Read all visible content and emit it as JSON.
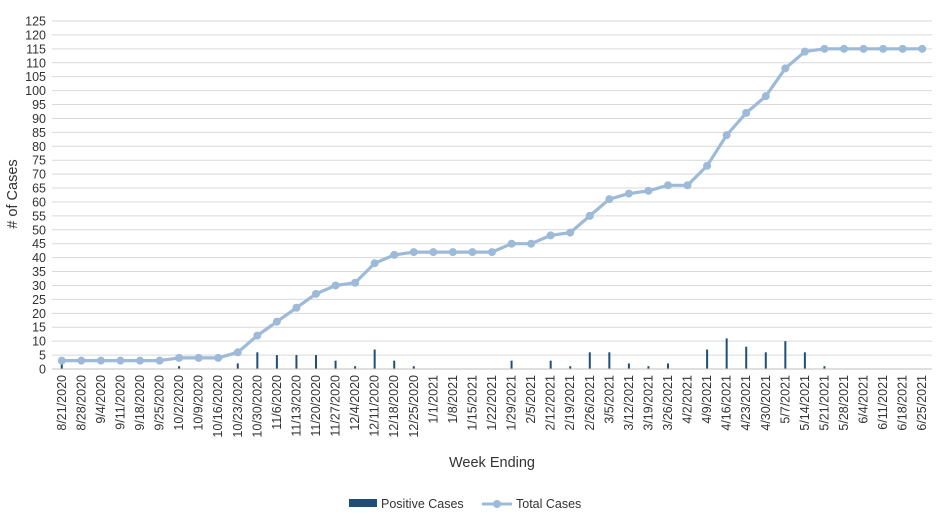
{
  "chart_data": {
    "type": "bar+line",
    "xlabel": "Week Ending",
    "ylabel": "# of Cases",
    "ylim": [
      0,
      125
    ],
    "ytick_step": 5,
    "grid": true,
    "legend_position": "bottom",
    "categories": [
      "8/21/2020",
      "8/28/2020",
      "9/4/2020",
      "9/11/2020",
      "9/18/2020",
      "9/25/2020",
      "10/2/2020",
      "10/9/2020",
      "10/16/2020",
      "10/23/2020",
      "10/30/2020",
      "11/6/2020",
      "11/13/2020",
      "11/20/2020",
      "11/27/2020",
      "12/4/2020",
      "12/11/2020",
      "12/18/2020",
      "12/25/2020",
      "1/1/2021",
      "1/8/2021",
      "1/15/2021",
      "1/22/2021",
      "1/29/2021",
      "2/5/2021",
      "2/12/2021",
      "2/19/2021",
      "2/26/2021",
      "3/5/2021",
      "3/12/2021",
      "3/19/2021",
      "3/26/2021",
      "4/2/2021",
      "4/9/2021",
      "4/16/2021",
      "4/23/2021",
      "4/30/2021",
      "5/7/2021",
      "5/14/2021",
      "5/21/2021",
      "5/28/2021",
      "6/4/2021",
      "6/11/2021",
      "6/18/2021",
      "6/25/2021"
    ],
    "series": [
      {
        "name": "Positive Cases",
        "kind": "bar",
        "color": "#1f4e79",
        "values": [
          3,
          0,
          0,
          0,
          0,
          0,
          1,
          0,
          0,
          2,
          6,
          5,
          5,
          5,
          3,
          1,
          7,
          3,
          1,
          0,
          0,
          0,
          0,
          3,
          0,
          3,
          1,
          6,
          6,
          2,
          1,
          2,
          0,
          7,
          11,
          8,
          6,
          10,
          6,
          1,
          0,
          0,
          0,
          0,
          0
        ]
      },
      {
        "name": "Total Cases",
        "kind": "line",
        "color": "#9dbad8",
        "values": [
          3,
          3,
          3,
          3,
          3,
          3,
          4,
          4,
          4,
          6,
          12,
          17,
          22,
          27,
          30,
          31,
          38,
          41,
          42,
          42,
          42,
          42,
          42,
          45,
          45,
          48,
          49,
          55,
          61,
          63,
          64,
          66,
          66,
          73,
          84,
          92,
          98,
          108,
          114,
          115,
          115,
          115,
          115,
          115,
          115
        ]
      }
    ]
  }
}
